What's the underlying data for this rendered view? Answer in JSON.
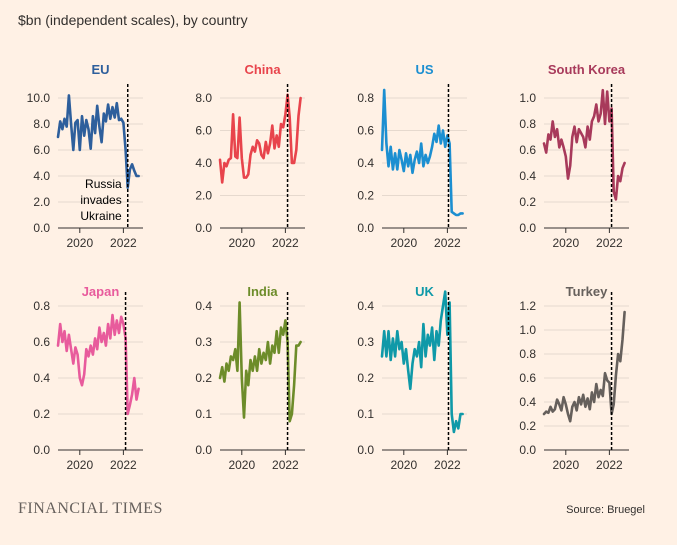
{
  "subtitle": "$bn (independent scales), by country",
  "brand": "FINANCIAL TIMES",
  "source": "Source: Bruegel",
  "annotation": [
    "Russia",
    "invades",
    "Ukraine"
  ],
  "chart_data": [
    {
      "type": "line",
      "title": "EU",
      "color": "#2e5f9c",
      "ylim": [
        0,
        10
      ],
      "yticks": [
        "0.0",
        "2.0",
        "4.0",
        "6.0",
        "8.0",
        "10.0"
      ],
      "xticks": [
        "2020",
        "2022"
      ],
      "xlim": [
        2019.0,
        2022.9
      ],
      "marker_x": 2022.2,
      "x": [
        2019.0,
        2019.1,
        2019.2,
        2019.3,
        2019.4,
        2019.5,
        2019.6,
        2019.7,
        2019.8,
        2019.9,
        2020.0,
        2020.1,
        2020.2,
        2020.3,
        2020.4,
        2020.5,
        2020.6,
        2020.7,
        2020.8,
        2020.9,
        2021.0,
        2021.1,
        2021.2,
        2021.3,
        2021.4,
        2021.5,
        2021.6,
        2021.7,
        2021.8,
        2021.9,
        2022.0,
        2022.1,
        2022.2,
        2022.3,
        2022.4,
        2022.5,
        2022.6,
        2022.7
      ],
      "values": [
        7.0,
        8.2,
        7.6,
        8.4,
        7.8,
        10.2,
        8.0,
        6.0,
        8.1,
        8.3,
        6.0,
        8.6,
        7.1,
        8.3,
        7.6,
        6.1,
        8.6,
        7.3,
        9.4,
        7.8,
        6.6,
        8.8,
        8.2,
        9.5,
        8.4,
        9.3,
        8.5,
        9.6,
        8.3,
        8.4,
        8.1,
        6.0,
        3.1,
        4.5,
        4.9,
        4.4,
        4.0,
        4.0
      ]
    },
    {
      "type": "line",
      "title": "China",
      "color": "#e8444c",
      "ylim": [
        0,
        8
      ],
      "yticks": [
        "0.0",
        "2.0",
        "4.0",
        "6.0",
        "8.0"
      ],
      "xticks": [
        "2020",
        "2022"
      ],
      "xlim": [
        2019.0,
        2022.9
      ],
      "marker_x": 2022.1,
      "x": [
        2019.0,
        2019.1,
        2019.2,
        2019.3,
        2019.4,
        2019.5,
        2019.6,
        2019.7,
        2019.8,
        2019.9,
        2020.0,
        2020.1,
        2020.2,
        2020.3,
        2020.4,
        2020.5,
        2020.6,
        2020.7,
        2020.8,
        2020.9,
        2021.0,
        2021.1,
        2021.2,
        2021.3,
        2021.4,
        2021.5,
        2021.6,
        2021.7,
        2021.8,
        2021.9,
        2022.0,
        2022.1,
        2022.2,
        2022.3,
        2022.4,
        2022.5,
        2022.6,
        2022.7
      ],
      "values": [
        4.2,
        2.8,
        4.0,
        3.8,
        4.2,
        4.3,
        7.0,
        4.4,
        4.3,
        6.8,
        4.3,
        3.1,
        3.1,
        3.3,
        4.5,
        5.0,
        4.7,
        5.4,
        5.2,
        4.5,
        4.3,
        5.3,
        4.6,
        5.2,
        6.3,
        4.9,
        5.7,
        5.0,
        6.4,
        6.2,
        7.0,
        8.2,
        6.8,
        4.0,
        4.0,
        4.8,
        6.9,
        8.0
      ]
    },
    {
      "type": "line",
      "title": "US",
      "color": "#1c8fd1",
      "ylim": [
        0,
        0.8
      ],
      "yticks": [
        "0.0",
        "0.2",
        "0.4",
        "0.6",
        "0.8"
      ],
      "xticks": [
        "2020",
        "2022"
      ],
      "xlim": [
        2019.0,
        2022.9
      ],
      "marker_x": 2022.05,
      "x": [
        2019.0,
        2019.1,
        2019.2,
        2019.3,
        2019.4,
        2019.5,
        2019.6,
        2019.7,
        2019.8,
        2019.9,
        2020.0,
        2020.1,
        2020.2,
        2020.3,
        2020.4,
        2020.5,
        2020.6,
        2020.7,
        2020.8,
        2020.9,
        2021.0,
        2021.1,
        2021.2,
        2021.3,
        2021.4,
        2021.5,
        2021.6,
        2021.7,
        2021.8,
        2021.9,
        2022.0,
        2022.1,
        2022.2,
        2022.3,
        2022.4,
        2022.5,
        2022.6,
        2022.7
      ],
      "values": [
        0.48,
        0.85,
        0.52,
        0.38,
        0.5,
        0.36,
        0.46,
        0.36,
        0.48,
        0.42,
        0.35,
        0.46,
        0.38,
        0.45,
        0.34,
        0.42,
        0.47,
        0.4,
        0.52,
        0.38,
        0.45,
        0.4,
        0.44,
        0.5,
        0.58,
        0.53,
        0.63,
        0.52,
        0.6,
        0.5,
        0.57,
        0.52,
        0.1,
        0.09,
        0.08,
        0.08,
        0.09,
        0.09
      ]
    },
    {
      "type": "line",
      "title": "South Korea",
      "color": "#a83a5b",
      "ylim": [
        0,
        1.0
      ],
      "yticks": [
        "0.0",
        "0.2",
        "0.4",
        "0.6",
        "0.8",
        "1.0"
      ],
      "xticks": [
        "2020",
        "2022"
      ],
      "xlim": [
        2019.0,
        2022.9
      ],
      "marker_x": 2022.1,
      "x": [
        2019.0,
        2019.1,
        2019.2,
        2019.3,
        2019.4,
        2019.5,
        2019.6,
        2019.7,
        2019.8,
        2019.9,
        2020.0,
        2020.1,
        2020.2,
        2020.3,
        2020.4,
        2020.5,
        2020.6,
        2020.7,
        2020.8,
        2020.9,
        2021.0,
        2021.1,
        2021.2,
        2021.3,
        2021.4,
        2021.5,
        2021.6,
        2021.7,
        2021.8,
        2021.9,
        2022.0,
        2022.1,
        2022.2,
        2022.3,
        2022.4,
        2022.5,
        2022.6,
        2022.7
      ],
      "values": [
        0.65,
        0.58,
        0.72,
        0.68,
        0.82,
        0.7,
        0.76,
        0.62,
        0.68,
        0.62,
        0.55,
        0.38,
        0.48,
        0.7,
        0.78,
        0.66,
        0.76,
        0.73,
        0.7,
        0.62,
        0.78,
        0.68,
        0.82,
        0.86,
        0.95,
        0.82,
        0.88,
        1.06,
        0.8,
        1.05,
        0.82,
        0.92,
        0.28,
        0.22,
        0.4,
        0.36,
        0.46,
        0.5
      ]
    },
    {
      "type": "line",
      "title": "Japan",
      "color": "#e85b9c",
      "ylim": [
        0,
        0.8
      ],
      "yticks": [
        "0.0",
        "0.2",
        "0.4",
        "0.6",
        "0.8"
      ],
      "xticks": [
        "2020",
        "2022"
      ],
      "xlim": [
        2019.0,
        2022.9
      ],
      "marker_x": 2022.1,
      "x": [
        2019.0,
        2019.1,
        2019.2,
        2019.3,
        2019.4,
        2019.5,
        2019.6,
        2019.7,
        2019.8,
        2019.9,
        2020.0,
        2020.1,
        2020.2,
        2020.3,
        2020.4,
        2020.5,
        2020.6,
        2020.7,
        2020.8,
        2020.9,
        2021.0,
        2021.1,
        2021.2,
        2021.3,
        2021.4,
        2021.5,
        2021.6,
        2021.7,
        2021.8,
        2021.9,
        2022.0,
        2022.1,
        2022.2,
        2022.3,
        2022.4,
        2022.5,
        2022.6,
        2022.7
      ],
      "values": [
        0.58,
        0.7,
        0.6,
        0.66,
        0.55,
        0.64,
        0.56,
        0.48,
        0.57,
        0.53,
        0.4,
        0.36,
        0.42,
        0.56,
        0.52,
        0.58,
        0.53,
        0.62,
        0.56,
        0.68,
        0.6,
        0.65,
        0.58,
        0.7,
        0.62,
        0.75,
        0.64,
        0.72,
        0.65,
        0.74,
        0.7,
        0.62,
        0.2,
        0.25,
        0.31,
        0.4,
        0.28,
        0.34
      ]
    },
    {
      "type": "line",
      "title": "India",
      "color": "#6d8c2a",
      "ylim": [
        0,
        0.4
      ],
      "yticks": [
        "0.0",
        "0.1",
        "0.2",
        "0.3",
        "0.4"
      ],
      "xticks": [
        "2020",
        "2022"
      ],
      "xlim": [
        2019.0,
        2022.9
      ],
      "marker_x": 2022.1,
      "x": [
        2019.0,
        2019.1,
        2019.2,
        2019.3,
        2019.4,
        2019.5,
        2019.6,
        2019.7,
        2019.8,
        2019.9,
        2020.0,
        2020.1,
        2020.2,
        2020.3,
        2020.4,
        2020.5,
        2020.6,
        2020.7,
        2020.8,
        2020.9,
        2021.0,
        2021.1,
        2021.2,
        2021.3,
        2021.4,
        2021.5,
        2021.6,
        2021.7,
        2021.8,
        2021.9,
        2022.0,
        2022.1,
        2022.2,
        2022.3,
        2022.4,
        2022.5,
        2022.6,
        2022.7
      ],
      "values": [
        0.2,
        0.23,
        0.19,
        0.24,
        0.22,
        0.26,
        0.25,
        0.28,
        0.22,
        0.41,
        0.2,
        0.09,
        0.22,
        0.18,
        0.25,
        0.22,
        0.26,
        0.22,
        0.28,
        0.24,
        0.27,
        0.25,
        0.3,
        0.24,
        0.29,
        0.27,
        0.33,
        0.27,
        0.34,
        0.32,
        0.36,
        0.3,
        0.08,
        0.1,
        0.18,
        0.29,
        0.29,
        0.3
      ]
    },
    {
      "type": "line",
      "title": "UK",
      "color": "#0f99a8",
      "ylim": [
        0,
        0.4
      ],
      "yticks": [
        "0.0",
        "0.1",
        "0.2",
        "0.3",
        "0.4"
      ],
      "xticks": [
        "2020",
        "2022"
      ],
      "xlim": [
        2019.0,
        2022.9
      ],
      "marker_x": 2022.05,
      "x": [
        2019.0,
        2019.1,
        2019.2,
        2019.3,
        2019.4,
        2019.5,
        2019.6,
        2019.7,
        2019.8,
        2019.9,
        2020.0,
        2020.1,
        2020.2,
        2020.3,
        2020.4,
        2020.5,
        2020.6,
        2020.7,
        2020.8,
        2020.9,
        2021.0,
        2021.1,
        2021.2,
        2021.3,
        2021.4,
        2021.5,
        2021.6,
        2021.7,
        2021.8,
        2021.9,
        2022.0,
        2022.1,
        2022.2,
        2022.3,
        2022.4,
        2022.5,
        2022.6,
        2022.7
      ],
      "values": [
        0.26,
        0.33,
        0.26,
        0.33,
        0.25,
        0.31,
        0.26,
        0.33,
        0.28,
        0.3,
        0.24,
        0.28,
        0.22,
        0.17,
        0.24,
        0.28,
        0.26,
        0.3,
        0.23,
        0.35,
        0.26,
        0.32,
        0.29,
        0.34,
        0.25,
        0.33,
        0.29,
        0.36,
        0.4,
        0.44,
        0.32,
        0.41,
        0.1,
        0.05,
        0.08,
        0.06,
        0.1,
        0.1
      ]
    },
    {
      "type": "line",
      "title": "Turkey",
      "color": "#66605c",
      "ylim": [
        0,
        1.2
      ],
      "yticks": [
        "0.0",
        "0.2",
        "0.4",
        "0.6",
        "0.8",
        "1.0",
        "1.2"
      ],
      "xticks": [
        "2020",
        "2022"
      ],
      "xlim": [
        2019.0,
        2022.9
      ],
      "marker_x": 2022.1,
      "x": [
        2019.0,
        2019.1,
        2019.2,
        2019.3,
        2019.4,
        2019.5,
        2019.6,
        2019.7,
        2019.8,
        2019.9,
        2020.0,
        2020.1,
        2020.2,
        2020.3,
        2020.4,
        2020.5,
        2020.6,
        2020.7,
        2020.8,
        2020.9,
        2021.0,
        2021.1,
        2021.2,
        2021.3,
        2021.4,
        2021.5,
        2021.6,
        2021.7,
        2021.8,
        2021.9,
        2022.0,
        2022.1,
        2022.2,
        2022.3,
        2022.4,
        2022.5,
        2022.6,
        2022.7
      ],
      "values": [
        0.3,
        0.32,
        0.31,
        0.36,
        0.32,
        0.34,
        0.42,
        0.38,
        0.33,
        0.44,
        0.38,
        0.3,
        0.24,
        0.36,
        0.4,
        0.33,
        0.44,
        0.38,
        0.46,
        0.36,
        0.43,
        0.34,
        0.48,
        0.4,
        0.55,
        0.44,
        0.5,
        0.45,
        0.64,
        0.58,
        0.56,
        0.3,
        0.38,
        0.62,
        0.8,
        0.74,
        0.92,
        1.15
      ]
    }
  ]
}
